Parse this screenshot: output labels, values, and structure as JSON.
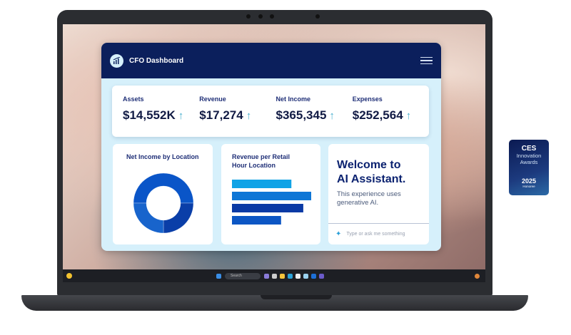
{
  "app": {
    "title": "CFO Dashboard",
    "logo_icon": "chart-growth-icon",
    "menu_icon": "hamburger-menu-icon"
  },
  "kpis": [
    {
      "label": "Assets",
      "value": "$14,552K",
      "trend": "↑"
    },
    {
      "label": "Revenue",
      "value": "$17,274",
      "trend": "↑"
    },
    {
      "label": "Net Income",
      "value": "$365,345",
      "trend": "↑"
    },
    {
      "label": "Expenses",
      "value": "$252,564",
      "trend": "↑"
    }
  ],
  "cards": {
    "donut": {
      "title": "Net Income by Location"
    },
    "bars": {
      "title_line1": "Revenue per Retail",
      "title_line2": "Hour Location"
    },
    "assistant": {
      "heading_line1": "Welcome to",
      "heading_line2": "AI Assistant.",
      "subtitle": "This experience uses generative AI.",
      "input_placeholder": "Type or ask me something",
      "sparkle_icon": "sparkle-icon"
    }
  },
  "chart_data": [
    {
      "type": "pie",
      "donut": true,
      "values": [
        50,
        25,
        25
      ],
      "colors": [
        "#0a55c8",
        "#0a3ea8",
        "#1864cc"
      ]
    },
    {
      "type": "bar",
      "orientation": "horizontal",
      "values": [
        0.75,
        1.0,
        0.9,
        0.62
      ],
      "colors": [
        "#10a3e6",
        "#0e76d6",
        "#0a3aa5",
        "#0c56c4"
      ]
    }
  ],
  "taskbar": {
    "search_label": "Search"
  },
  "badge": {
    "brand": "CES",
    "line1": "Innovation",
    "line2": "Awards",
    "year": "2025",
    "tag": "Honoree"
  },
  "colors": {
    "header": "#0b1f5c",
    "accent": "#0a55c8",
    "background": "#d6f0fb"
  }
}
